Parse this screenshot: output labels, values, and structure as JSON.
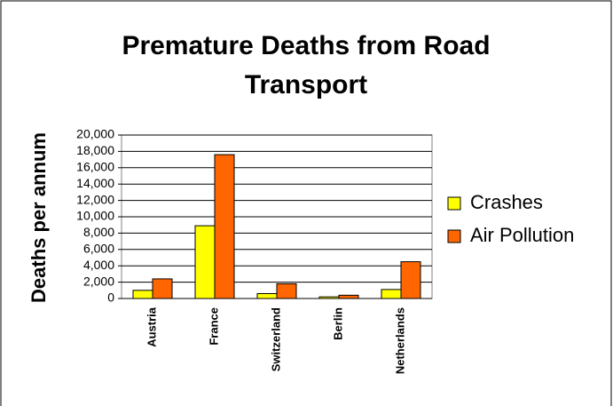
{
  "chart_data": {
    "type": "bar",
    "title": "Premature Deaths from Road Transport",
    "y_label": "Deaths per annum",
    "categories": [
      "Austria",
      "France",
      "Switzerland",
      "Berlin",
      "Netherlands"
    ],
    "series": [
      {
        "name": "Crashes",
        "color": "#ffff00",
        "values": [
          1000,
          8900,
          600,
          200,
          1100
        ]
      },
      {
        "name": "Air Pollution",
        "color": "#ff6600",
        "values": [
          2400,
          17600,
          1800,
          400,
          4500
        ]
      }
    ],
    "ylim": [
      0,
      20000
    ],
    "yticks": [
      0,
      {
        "value": 2000,
        "label": "2,000"
      },
      {
        "value": 4000,
        "label": "4,000"
      },
      {
        "value": 6000,
        "label": "6,000"
      },
      {
        "value": 8000,
        "label": "8,000"
      },
      {
        "value": 10000,
        "label": "10,000"
      },
      {
        "value": 12000,
        "label": "12,000"
      },
      {
        "value": 14000,
        "label": "14,000"
      },
      {
        "value": 16000,
        "label": "16,000"
      },
      {
        "value": 18000,
        "label": "18,000"
      },
      {
        "value": 20000,
        "label": "20,000"
      }
    ],
    "grid": true,
    "legend": "right"
  }
}
